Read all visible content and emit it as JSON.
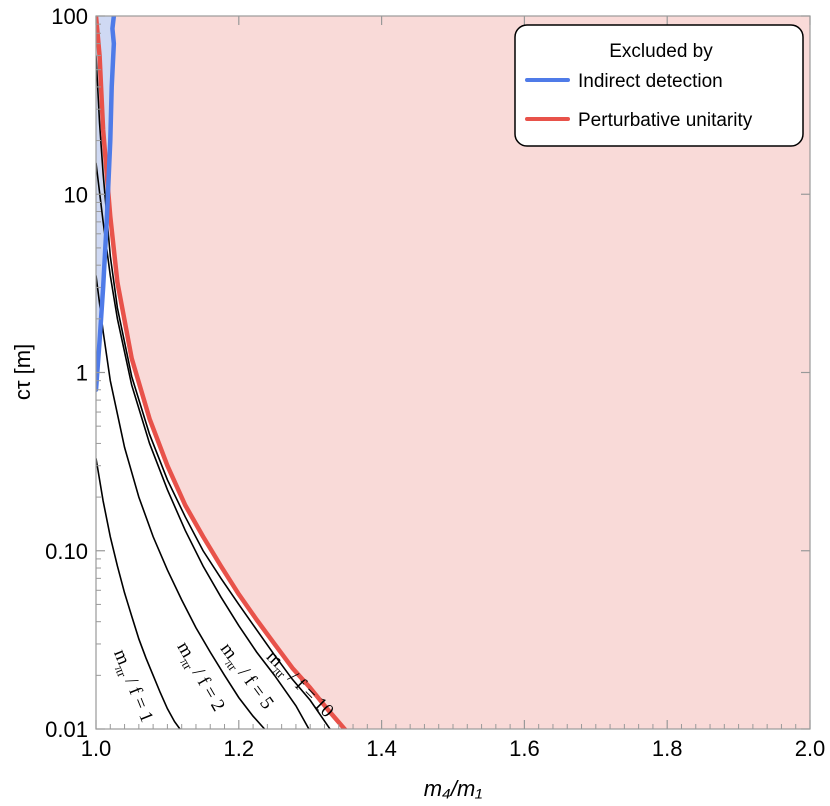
{
  "chart_data": {
    "type": "line",
    "title": "",
    "xlabel": "m₄/m₁",
    "ylabel": "cτ [m]",
    "xlim": [
      1.0,
      2.0
    ],
    "ylim": [
      0.01,
      100
    ],
    "yscale": "log",
    "grid": false,
    "x_ticks": [
      "1.0",
      "1.2",
      "1.4",
      "1.6",
      "1.8",
      "2.0"
    ],
    "y_ticks": [
      "0.01",
      "0.10",
      "1",
      "10",
      "100"
    ],
    "legend": {
      "placement": "top-right",
      "title": "Excluded by",
      "entries": [
        {
          "label": "Indirect detection",
          "color": "#4f7be8"
        },
        {
          "label": "Perturbative unitarity",
          "color": "#e8524a"
        }
      ]
    },
    "colors": {
      "unitarity_fill": "#f9dad8",
      "indirect_fill": "#cfd9f3",
      "contour": "#000000"
    },
    "series": [
      {
        "name": "Perturbative unitarity",
        "color": "#e8524a",
        "x": [
          1.0,
          1.005,
          1.01,
          1.02,
          1.03,
          1.05,
          1.075,
          1.1,
          1.125,
          1.15,
          1.175,
          1.2,
          1.225,
          1.25,
          1.275,
          1.3,
          1.325,
          1.35
        ],
        "y": [
          100,
          60,
          23,
          7.5,
          3.2,
          1.2,
          0.55,
          0.3,
          0.18,
          0.12,
          0.082,
          0.057,
          0.041,
          0.03,
          0.022,
          0.017,
          0.0128,
          0.0098
        ]
      },
      {
        "name": "Indirect detection",
        "color": "#4f7be8",
        "x": [
          1.0,
          1.005,
          1.01,
          1.015,
          1.02,
          1.022,
          1.025,
          1.023,
          1.025
        ],
        "y": [
          0.8,
          1.5,
          3.0,
          7.0,
          20,
          40,
          70,
          85,
          100
        ]
      }
    ],
    "contours": [
      {
        "label_pre": "m",
        "label_sub": "πr",
        "label_post": " / f = 1",
        "x": [
          1.0,
          1.01,
          1.02,
          1.03,
          1.04,
          1.05,
          1.06,
          1.07,
          1.08,
          1.09,
          1.1,
          1.11,
          1.12
        ],
        "y": [
          0.33,
          0.19,
          0.12,
          0.082,
          0.058,
          0.043,
          0.032,
          0.025,
          0.02,
          0.016,
          0.013,
          0.011,
          0.0097
        ]
      },
      {
        "label_pre": "m",
        "label_sub": "πr",
        "label_post": " / f = 2",
        "x": [
          1.0,
          1.01,
          1.02,
          1.04,
          1.06,
          1.08,
          1.1,
          1.12,
          1.14,
          1.16,
          1.18,
          1.2,
          1.22,
          1.24
        ],
        "y": [
          3.5,
          1.7,
          0.9,
          0.38,
          0.2,
          0.12,
          0.078,
          0.053,
          0.037,
          0.027,
          0.02,
          0.015,
          0.0118,
          0.0096
        ]
      },
      {
        "label_pre": "m",
        "label_sub": "πr",
        "label_post": " / f = 5",
        "x": [
          1.0,
          1.01,
          1.02,
          1.03,
          1.05,
          1.075,
          1.1,
          1.125,
          1.15,
          1.175,
          1.2,
          1.225,
          1.25,
          1.28,
          1.3
        ],
        "y": [
          15,
          7.0,
          3.5,
          2.0,
          0.85,
          0.4,
          0.22,
          0.13,
          0.082,
          0.055,
          0.038,
          0.027,
          0.02,
          0.0135,
          0.0097
        ]
      },
      {
        "label_pre": "m",
        "label_sub": "πr",
        "label_post": " / f = 10",
        "x": [
          1.0,
          1.005,
          1.01,
          1.02,
          1.03,
          1.05,
          1.075,
          1.1,
          1.125,
          1.15,
          1.175,
          1.2,
          1.225,
          1.25,
          1.275,
          1.3,
          1.33
        ],
        "y": [
          60,
          25,
          13,
          4.5,
          2.3,
          0.95,
          0.45,
          0.25,
          0.155,
          0.1,
          0.07,
          0.05,
          0.036,
          0.026,
          0.019,
          0.0145,
          0.0097
        ]
      }
    ]
  }
}
